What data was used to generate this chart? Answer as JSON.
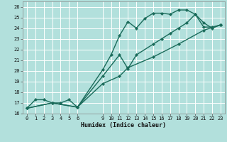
{
  "xlabel": "Humidex (Indice chaleur)",
  "bg_color": "#b2e0dc",
  "grid_color": "#ffffff",
  "line_color": "#1a6b5a",
  "marker": "D",
  "markersize": 2.2,
  "linewidth": 1.0,
  "xlim": [
    -0.5,
    23.5
  ],
  "ylim": [
    16,
    26.5
  ],
  "xticks": [
    0,
    1,
    2,
    3,
    4,
    5,
    6,
    9,
    10,
    11,
    12,
    13,
    14,
    15,
    16,
    17,
    18,
    19,
    20,
    21,
    22,
    23
  ],
  "yticks": [
    16,
    17,
    18,
    19,
    20,
    21,
    22,
    23,
    24,
    25,
    26
  ],
  "line1": {
    "x": [
      0,
      1,
      2,
      3,
      4,
      5,
      6,
      9,
      10,
      11,
      12,
      13,
      14,
      15,
      16,
      17,
      18,
      19,
      20,
      21,
      22,
      23
    ],
    "y": [
      16.5,
      17.3,
      17.3,
      17.0,
      17.0,
      17.3,
      16.6,
      20.1,
      21.5,
      23.3,
      24.6,
      24.0,
      24.9,
      25.4,
      25.4,
      25.3,
      25.7,
      25.7,
      25.3,
      24.1,
      24.1,
      24.3
    ]
  },
  "line2": {
    "x": [
      0,
      3,
      6,
      9,
      11,
      12,
      13,
      15,
      16,
      17,
      18,
      19,
      20,
      21,
      22,
      23
    ],
    "y": [
      16.5,
      17.0,
      16.6,
      19.5,
      21.5,
      20.2,
      21.5,
      22.5,
      23.0,
      23.5,
      24.0,
      24.5,
      25.3,
      24.5,
      24.0,
      24.3
    ]
  },
  "line3": {
    "x": [
      0,
      3,
      6,
      9,
      11,
      12,
      15,
      18,
      21,
      23
    ],
    "y": [
      16.5,
      17.0,
      16.6,
      18.8,
      19.5,
      20.3,
      21.3,
      22.5,
      23.8,
      24.3
    ]
  }
}
